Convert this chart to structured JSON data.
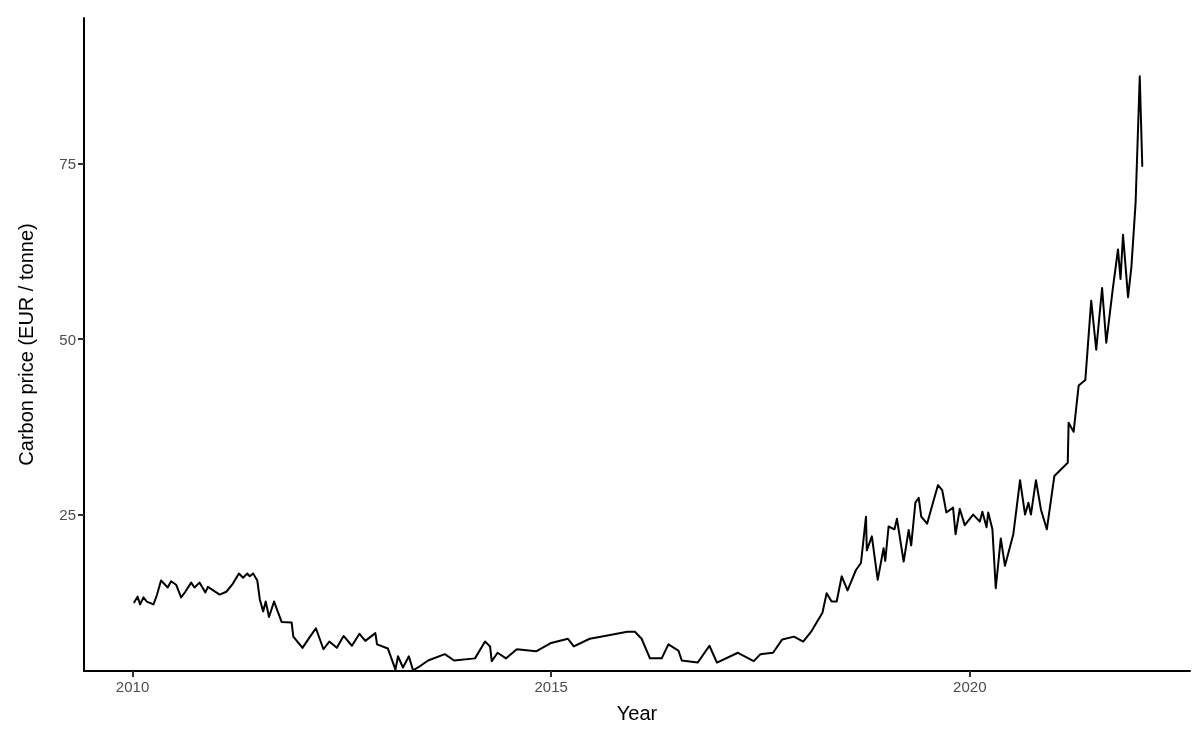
{
  "chart_data": {
    "type": "line",
    "xlabel": "Year",
    "ylabel": "Carbon price (EUR / tonne)",
    "xlim": [
      2009.42,
      2022.63
    ],
    "ylim": [
      2.7,
      95.8
    ],
    "xticks": [
      2010,
      2015,
      2020
    ],
    "yticks": [
      25,
      50,
      75
    ],
    "grid": false,
    "marker": "none",
    "line_style": "solid",
    "series": [
      {
        "color": "#000000",
        "x": [
          2010.02,
          2010.06,
          2010.09,
          2010.13,
          2010.17,
          2010.25,
          2010.29,
          2010.34,
          2010.42,
          2010.46,
          2010.52,
          2010.58,
          2010.63,
          2010.7,
          2010.74,
          2010.8,
          2010.87,
          2010.9,
          2011.04,
          2011.12,
          2011.19,
          2011.27,
          2011.32,
          2011.37,
          2011.4,
          2011.44,
          2011.49,
          2011.52,
          2011.56,
          2011.59,
          2011.63,
          2011.69,
          2011.78,
          2011.9,
          2011.92,
          2012.03,
          2012.12,
          2012.19,
          2012.28,
          2012.35,
          2012.44,
          2012.52,
          2012.62,
          2012.71,
          2012.78,
          2012.9,
          2012.92,
          2013.05,
          2013.14,
          2013.17,
          2013.23,
          2013.3,
          2013.35,
          2013.41,
          2013.53,
          2013.73,
          2013.84,
          2014.09,
          2014.21,
          2014.27,
          2014.29,
          2014.36,
          2014.46,
          2014.59,
          2014.82,
          2015.0,
          2015.2,
          2015.27,
          2015.46,
          2015.64,
          2015.91,
          2016.0,
          2016.08,
          2016.18,
          2016.32,
          2016.4,
          2016.52,
          2016.56,
          2016.75,
          2016.89,
          2016.98,
          2017.23,
          2017.42,
          2017.5,
          2017.65,
          2017.76,
          2017.9,
          2018.01,
          2018.11,
          2018.24,
          2018.29,
          2018.35,
          2018.41,
          2018.47,
          2018.54,
          2018.64,
          2018.7,
          2018.76,
          2018.77,
          2018.83,
          2018.9,
          2018.97,
          2018.99,
          2019.03,
          2019.1,
          2019.13,
          2019.21,
          2019.27,
          2019.3,
          2019.35,
          2019.39,
          2019.42,
          2019.49,
          2019.56,
          2019.62,
          2019.67,
          2019.72,
          2019.8,
          2019.83,
          2019.88,
          2019.94,
          2020.04,
          2020.12,
          2020.15,
          2020.2,
          2020.22,
          2020.27,
          2020.31,
          2020.37,
          2020.42,
          2020.52,
          2020.6,
          2020.66,
          2020.7,
          2020.73,
          2020.79,
          2020.85,
          2020.92,
          2021.01,
          2021.17,
          2021.18,
          2021.24,
          2021.3,
          2021.38,
          2021.45,
          2021.51,
          2021.58,
          2021.63,
          2021.71,
          2021.77,
          2021.8,
          2021.83,
          2021.89,
          2021.93,
          2021.98,
          2022.03,
          2022.04,
          2022.06
        ],
        "values": [
          12.5,
          13.3,
          12.2,
          13.2,
          12.6,
          12.2,
          13.5,
          15.6,
          14.6,
          15.5,
          15.0,
          13.2,
          14.0,
          15.3,
          14.6,
          15.3,
          13.9,
          14.7,
          13.6,
          14.0,
          15.0,
          16.6,
          16.0,
          16.6,
          16.2,
          16.6,
          15.6,
          12.9,
          11.2,
          12.6,
          10.4,
          12.6,
          9.7,
          9.6,
          7.6,
          6.0,
          7.6,
          8.8,
          5.8,
          6.9,
          6.0,
          7.7,
          6.3,
          8.0,
          7.0,
          8.1,
          6.5,
          5.9,
          2.9,
          4.8,
          3.2,
          4.8,
          2.8,
          3.2,
          4.2,
          5.1,
          4.2,
          4.5,
          6.9,
          6.2,
          4.1,
          5.3,
          4.5,
          5.8,
          5.5,
          6.7,
          7.3,
          6.2,
          7.3,
          7.7,
          8.3,
          8.3,
          7.3,
          4.5,
          4.5,
          6.5,
          5.6,
          4.2,
          3.9,
          6.3,
          3.9,
          5.3,
          4.1,
          5.1,
          5.3,
          7.2,
          7.6,
          6.9,
          8.4,
          11.0,
          13.8,
          12.6,
          12.6,
          16.2,
          14.2,
          17.1,
          18.1,
          24.7,
          19.9,
          21.9,
          15.7,
          20.2,
          18.4,
          23.3,
          22.9,
          24.4,
          18.3,
          22.8,
          20.6,
          26.7,
          27.4,
          24.7,
          23.7,
          26.7,
          29.2,
          28.5,
          25.3,
          26.0,
          22.2,
          25.8,
          23.5,
          25.0,
          24.0,
          25.4,
          23.2,
          25.3,
          22.9,
          14.5,
          21.6,
          17.7,
          22.2,
          29.9,
          25.0,
          26.7,
          25.0,
          29.9,
          25.7,
          22.9,
          30.5,
          32.4,
          38.1,
          36.8,
          43.4,
          44.2,
          55.5,
          48.5,
          57.3,
          49.5,
          57.4,
          62.8,
          58.6,
          64.9,
          56.0,
          60.3,
          69.4,
          87.5,
          83.1,
          74.7
        ]
      }
    ]
  }
}
